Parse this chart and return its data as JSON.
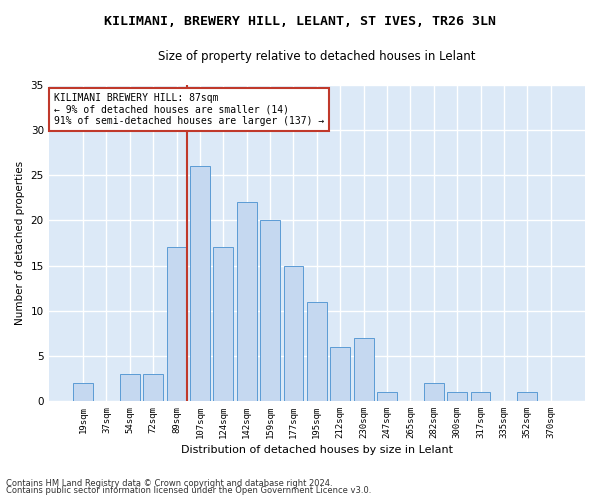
{
  "title": "KILIMANI, BREWERY HILL, LELANT, ST IVES, TR26 3LN",
  "subtitle": "Size of property relative to detached houses in Lelant",
  "xlabel": "Distribution of detached houses by size in Lelant",
  "ylabel": "Number of detached properties",
  "footnote1": "Contains HM Land Registry data © Crown copyright and database right 2024.",
  "footnote2": "Contains public sector information licensed under the Open Government Licence v3.0.",
  "annotation_title": "KILIMANI BREWERY HILL: 87sqm",
  "annotation_line1": "← 9% of detached houses are smaller (14)",
  "annotation_line2": "91% of semi-detached houses are larger (137) →",
  "bar_labels": [
    "19sqm",
    "37sqm",
    "54sqm",
    "72sqm",
    "89sqm",
    "107sqm",
    "124sqm",
    "142sqm",
    "159sqm",
    "177sqm",
    "195sqm",
    "212sqm",
    "230sqm",
    "247sqm",
    "265sqm",
    "282sqm",
    "300sqm",
    "317sqm",
    "335sqm",
    "352sqm",
    "370sqm"
  ],
  "bar_values": [
    2,
    0,
    3,
    3,
    17,
    26,
    17,
    22,
    20,
    15,
    11,
    6,
    7,
    1,
    0,
    2,
    1,
    1,
    0,
    1,
    0
  ],
  "bar_color": "#c5d8f0",
  "bar_edge_color": "#5b9bd5",
  "vline_color": "#c0392b",
  "vline_x_index": 4.43,
  "ylim": [
    0,
    35
  ],
  "yticks": [
    0,
    5,
    10,
    15,
    20,
    25,
    30,
    35
  ],
  "background_color": "#dce9f7",
  "grid_color": "#ffffff",
  "fig_background": "#ffffff",
  "title_fontsize": 9.5,
  "subtitle_fontsize": 8.5,
  "annotation_box_color": "#ffffff",
  "annotation_box_edge": "#c0392b",
  "footnote_fontsize": 6.0
}
